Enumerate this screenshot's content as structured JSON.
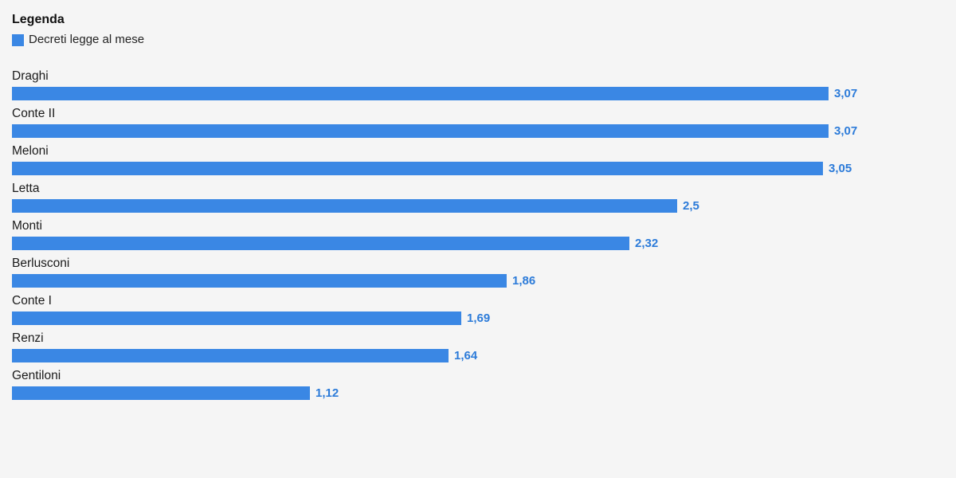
{
  "legend": {
    "title": "Legenda",
    "items": [
      {
        "label": "Decreti legge al mese",
        "swatch_color": "#3a87e4"
      }
    ]
  },
  "chart_data": {
    "type": "bar",
    "orientation": "horizontal",
    "series_name": "Decreti legge al mese",
    "categories": [
      "Draghi",
      "Conte II",
      "Meloni",
      "Letta",
      "Monti",
      "Berlusconi",
      "Conte I",
      "Renzi",
      "Gentiloni"
    ],
    "values": [
      3.07,
      3.07,
      3.05,
      2.5,
      2.32,
      1.86,
      1.69,
      1.64,
      1.12
    ],
    "value_labels": [
      "3,07",
      "3,07",
      "3,05",
      "2,5",
      "2,32",
      "1,86",
      "1,69",
      "1,64",
      "1,12"
    ],
    "xlim": [
      0,
      3.07
    ],
    "grid": false,
    "legend_position": "top-left",
    "bar_color": "#3a87e4",
    "value_label_color": "#2c7bd9",
    "category_label_color": "#1a1a1a",
    "background_color": "#f5f5f5"
  }
}
